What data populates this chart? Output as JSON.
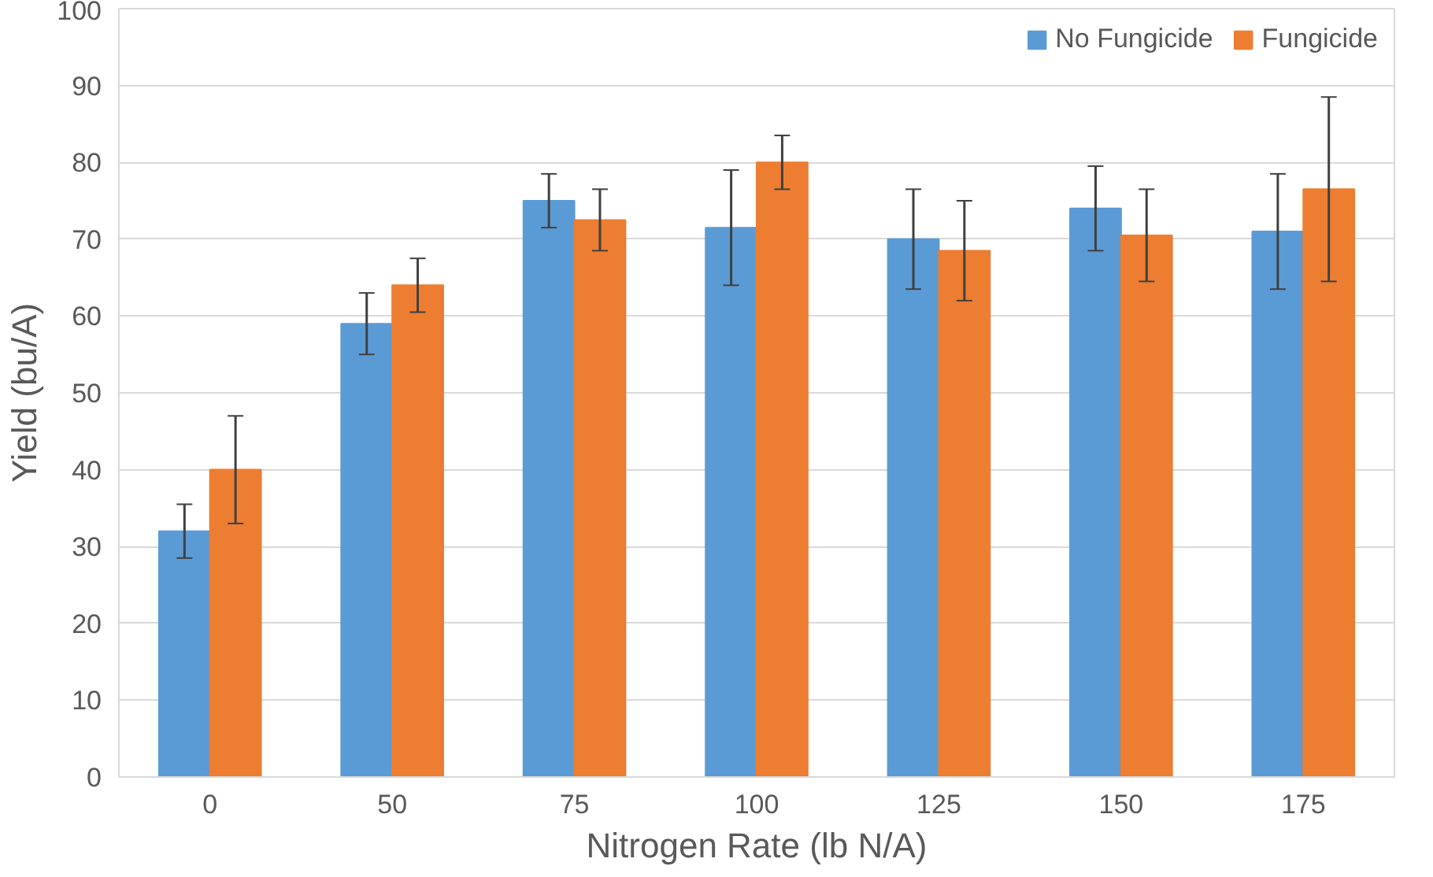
{
  "chart_data": {
    "type": "bar",
    "xlabel": "Nitrogen Rate (lb N/A)",
    "ylabel": "Yield (bu/A)",
    "categories": [
      "0",
      "50",
      "75",
      "100",
      "125",
      "150",
      "175"
    ],
    "series": [
      {
        "name": "No Fungicide",
        "color": "#5b9bd5",
        "values": [
          32,
          59,
          75,
          71.5,
          70,
          74,
          71
        ],
        "errors": [
          3.5,
          4,
          3.5,
          7.5,
          6.5,
          5.5,
          7.5
        ]
      },
      {
        "name": "Fungicide",
        "color": "#ed7d31",
        "values": [
          40,
          64,
          72.5,
          80,
          68.5,
          70.5,
          76.5
        ],
        "errors": [
          7,
          3.5,
          4,
          3.5,
          6.5,
          6,
          12
        ]
      }
    ],
    "ylim": [
      0,
      100
    ],
    "yticks": [
      0,
      10,
      20,
      30,
      40,
      50,
      60,
      70,
      80,
      90,
      100
    ],
    "grid": "y",
    "legend": "top right"
  }
}
